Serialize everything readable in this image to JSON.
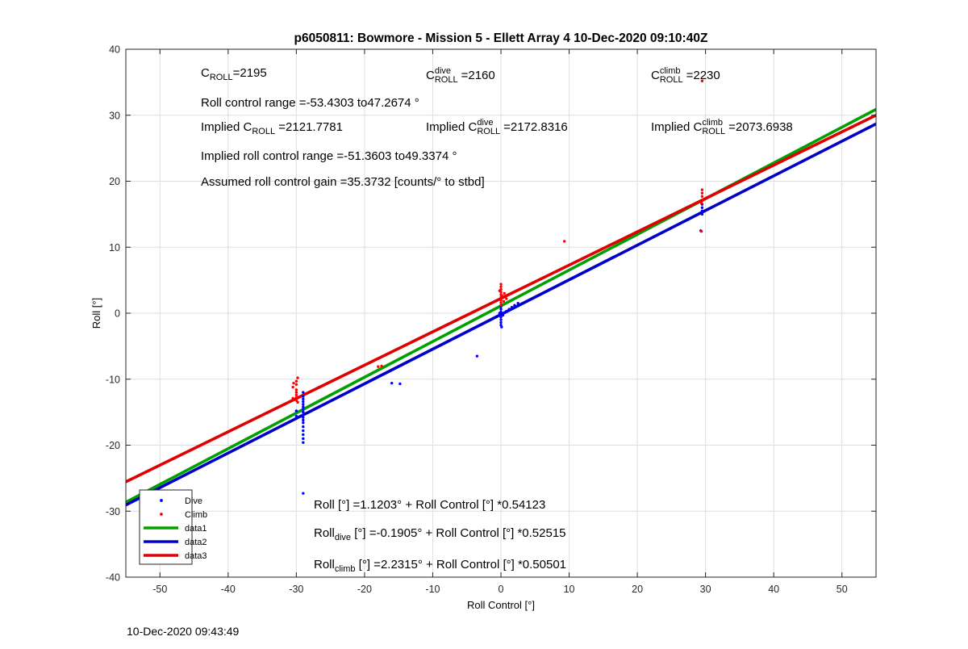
{
  "chart_data": {
    "type": "scatter",
    "title": "p6050811: Bowmore - Mission 5 - Ellett Array 4 10-Dec-2020 09:10:40Z",
    "xlabel": "Roll Control [°]",
    "ylabel": "Roll [°]",
    "xlim": [
      -55,
      55
    ],
    "ylim": [
      -40,
      40
    ],
    "xticks": [
      -50,
      -40,
      -30,
      -20,
      -10,
      0,
      10,
      20,
      30,
      40,
      50
    ],
    "yticks": [
      -40,
      -30,
      -20,
      -10,
      0,
      10,
      20,
      30,
      40
    ],
    "grid": true,
    "legend_position": "bottom-left",
    "series": [
      {
        "name": "Dive",
        "kind": "points",
        "color": "#0000ff",
        "points": [
          [
            -29.0,
            -12.0
          ],
          [
            -29.0,
            -12.6
          ],
          [
            -29.0,
            -13.0
          ],
          [
            -29.0,
            -13.4
          ],
          [
            -29.0,
            -13.8
          ],
          [
            -29.0,
            -14.2
          ],
          [
            -29.0,
            -14.6
          ],
          [
            -29.0,
            -15.0
          ],
          [
            -29.0,
            -15.4
          ],
          [
            -29.0,
            -15.8
          ],
          [
            -29.0,
            -16.2
          ],
          [
            -29.0,
            -16.6
          ],
          [
            -29.0,
            -17.2
          ],
          [
            -29.0,
            -17.8
          ],
          [
            -29.0,
            -18.4
          ],
          [
            -29.0,
            -19.0
          ],
          [
            -29.0,
            -19.6
          ],
          [
            -30.0,
            -14.8
          ],
          [
            -30.0,
            -15.6
          ],
          [
            -29.0,
            -27.3
          ],
          [
            -16.0,
            -10.6
          ],
          [
            -14.8,
            -10.7
          ],
          [
            -3.5,
            -6.5
          ],
          [
            0.0,
            1.0
          ],
          [
            0.0,
            0.6
          ],
          [
            0.0,
            0.2
          ],
          [
            0.0,
            -0.2
          ],
          [
            0.0,
            -0.6
          ],
          [
            0.0,
            -1.0
          ],
          [
            0.0,
            -1.4
          ],
          [
            0.0,
            -1.8
          ],
          [
            0.1,
            -2.1
          ],
          [
            -0.2,
            0.0
          ],
          [
            0.3,
            -0.3
          ],
          [
            0.6,
            0.1
          ],
          [
            0.8,
            0.3
          ],
          [
            1.2,
            0.6
          ],
          [
            1.6,
            0.9
          ],
          [
            2.0,
            1.2
          ],
          [
            2.5,
            1.5
          ],
          [
            29.5,
            16.0
          ],
          [
            29.5,
            15.5
          ],
          [
            29.5,
            15.0
          ],
          [
            29.5,
            16.5
          ],
          [
            29.3,
            12.5
          ]
        ]
      },
      {
        "name": "Climb",
        "kind": "points",
        "color": "#ff0000",
        "points": [
          [
            -30.0,
            -10.3
          ],
          [
            -30.0,
            -10.8
          ],
          [
            -30.5,
            -11.2
          ],
          [
            -30.0,
            -11.6
          ],
          [
            -30.0,
            -12.0
          ],
          [
            -30.0,
            -12.4
          ],
          [
            -30.0,
            -12.8
          ],
          [
            -30.0,
            -13.2
          ],
          [
            -29.8,
            -13.5
          ],
          [
            -30.5,
            -12.9
          ],
          [
            -29.8,
            -9.8
          ],
          [
            -30.4,
            -10.6
          ],
          [
            -18.0,
            -8.1
          ],
          [
            -17.5,
            -8.0
          ],
          [
            0.0,
            4.4
          ],
          [
            0.0,
            4.0
          ],
          [
            0.0,
            3.6
          ],
          [
            0.0,
            3.2
          ],
          [
            0.0,
            2.8
          ],
          [
            0.0,
            2.4
          ],
          [
            0.0,
            2.0
          ],
          [
            0.0,
            1.6
          ],
          [
            0.0,
            1.2
          ],
          [
            -0.2,
            3.4
          ],
          [
            0.2,
            2.6
          ],
          [
            0.4,
            1.8
          ],
          [
            0.5,
            3.0
          ],
          [
            0.8,
            2.2
          ],
          [
            9.3,
            10.9
          ],
          [
            29.5,
            18.7
          ],
          [
            29.5,
            18.2
          ],
          [
            29.5,
            17.7
          ],
          [
            29.6,
            17.2
          ],
          [
            29.4,
            16.7
          ],
          [
            29.4,
            12.4
          ],
          [
            29.5,
            35.2
          ]
        ]
      },
      {
        "name": "data1",
        "kind": "line",
        "color": "#00a000",
        "intercept": 1.1203,
        "slope": 0.54123
      },
      {
        "name": "data2",
        "kind": "line",
        "color": "#0000c8",
        "intercept": -0.1905,
        "slope": 0.52515
      },
      {
        "name": "data3",
        "kind": "line",
        "color": "#e00000",
        "intercept": 2.2315,
        "slope": 0.50501
      }
    ]
  },
  "annotations": {
    "c_roll": {
      "base": "C",
      "sub": "ROLL",
      "value": "=2195"
    },
    "c_roll_dive": {
      "base": "C",
      "sup": "dive",
      "sub": "ROLL",
      "value": "=2160"
    },
    "c_roll_climb": {
      "base": "C",
      "sup": "climb",
      "sub": "ROLL",
      "value": "=2230"
    },
    "roll_control_range": "Roll control range =-53.4303 to47.2674 °",
    "implied_c_roll": {
      "prefix": "Implied C",
      "sub": "ROLL",
      "value": "=2121.7781"
    },
    "implied_c_roll_dive": {
      "prefix": "Implied C",
      "sup": "dive",
      "sub": "ROLL",
      "value": "=2172.8316"
    },
    "implied_c_roll_climb": {
      "prefix": "Implied C",
      "sup": "climb",
      "sub": "ROLL",
      "value": "=2073.6938"
    },
    "implied_roll_range": "Implied roll control range =-51.3603 to49.3374 °",
    "gain": "Assumed roll control gain =35.3732 [counts/° to stbd]",
    "fit_all": "Roll [°] =1.1203° + Roll Control [°] *0.54123",
    "fit_dive": {
      "base": "Roll",
      "sub": "dive",
      "rest": " [°] =-0.1905° + Roll Control [°] *0.52515"
    },
    "fit_climb": {
      "base": "Roll",
      "sub": "climb",
      "rest": " [°] =2.2315° + Roll Control [°] *0.50501"
    }
  },
  "timestamp": "10-Dec-2020 09:43:49"
}
